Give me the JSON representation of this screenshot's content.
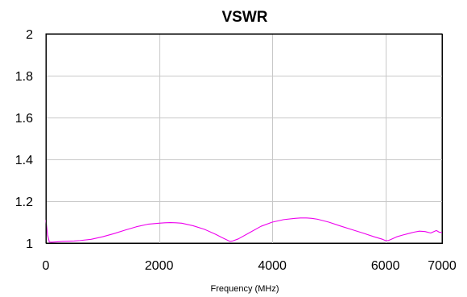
{
  "chart_data": {
    "type": "line",
    "title": "VSWR",
    "xlabel": "Frequency (MHz)",
    "ylabel": "",
    "xlim": [
      0,
      7000
    ],
    "ylim": [
      1,
      2
    ],
    "x_ticks": [
      0,
      2000,
      4000,
      6000,
      7000
    ],
    "y_ticks": [
      1,
      1.2,
      1.4,
      1.6,
      1.8,
      2
    ],
    "x_tick_labels": [
      "0",
      "2000",
      "4000",
      "6000",
      "7000"
    ],
    "y_tick_labels": [
      "1",
      "1.2",
      "1.4",
      "1.6",
      "1.8",
      "2"
    ],
    "grid": true,
    "series": [
      {
        "color": "#ee00ee",
        "x": [
          0,
          30,
          60,
          100,
          200,
          300,
          400,
          500,
          600,
          800,
          1000,
          1200,
          1400,
          1600,
          1800,
          2000,
          2100,
          2200,
          2300,
          2400,
          2600,
          2800,
          3000,
          3100,
          3200,
          3250,
          3300,
          3400,
          3600,
          3800,
          4000,
          4200,
          4400,
          4500,
          4600,
          4700,
          4800,
          5000,
          5200,
          5400,
          5600,
          5800,
          5950,
          6000,
          6050,
          6100,
          6200,
          6300,
          6400,
          6500,
          6600,
          6700,
          6800,
          6900,
          6950,
          7000
        ],
        "values": [
          1.11,
          1.04,
          1.005,
          1.004,
          1.006,
          1.008,
          1.009,
          1.01,
          1.012,
          1.018,
          1.03,
          1.045,
          1.062,
          1.078,
          1.09,
          1.095,
          1.097,
          1.098,
          1.097,
          1.095,
          1.083,
          1.066,
          1.042,
          1.028,
          1.015,
          1.008,
          1.01,
          1.02,
          1.05,
          1.08,
          1.1,
          1.112,
          1.118,
          1.12,
          1.12,
          1.118,
          1.114,
          1.1,
          1.082,
          1.065,
          1.048,
          1.03,
          1.018,
          1.012,
          1.012,
          1.018,
          1.03,
          1.038,
          1.045,
          1.052,
          1.057,
          1.055,
          1.048,
          1.06,
          1.052,
          1.05
        ]
      }
    ]
  }
}
